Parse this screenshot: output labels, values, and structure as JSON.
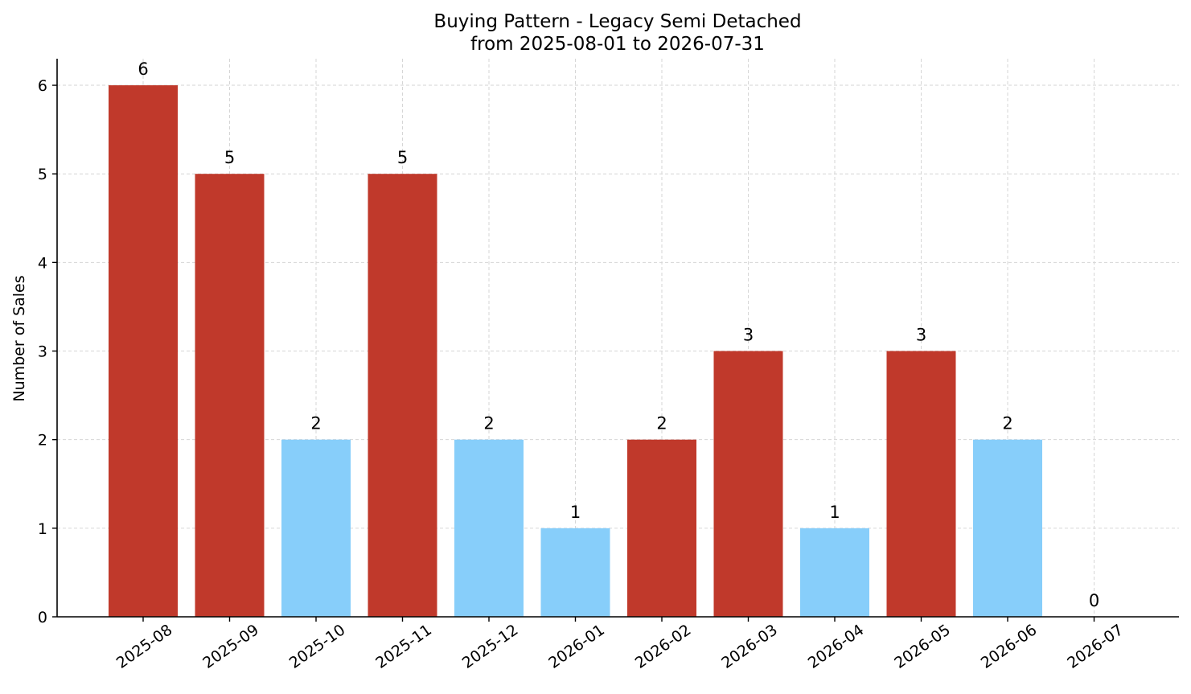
{
  "chart_data": {
    "type": "bar",
    "title": "Buying Pattern - Legacy Semi Detached",
    "subtitle": "from 2025-08-01 to 2026-07-31",
    "xlabel": "",
    "ylabel": "Number of Sales",
    "ylim": [
      0,
      6.3
    ],
    "yticks": [
      "0",
      "1",
      "2",
      "3",
      "4",
      "5",
      "6"
    ],
    "grid": true,
    "categories": [
      "2025-08",
      "2025-09",
      "2025-10",
      "2025-11",
      "2025-12",
      "2026-01",
      "2026-02",
      "2026-03",
      "2026-04",
      "2026-05",
      "2026-06",
      "2026-07"
    ],
    "values": [
      6,
      5,
      2,
      5,
      2,
      1,
      2,
      3,
      1,
      3,
      2,
      0
    ],
    "bar_colors": [
      "#c0392b",
      "#c0392b",
      "#87cefa",
      "#c0392b",
      "#87cefa",
      "#87cefa",
      "#c0392b",
      "#c0392b",
      "#87cefa",
      "#c0392b",
      "#87cefa",
      "#87cefa"
    ]
  }
}
